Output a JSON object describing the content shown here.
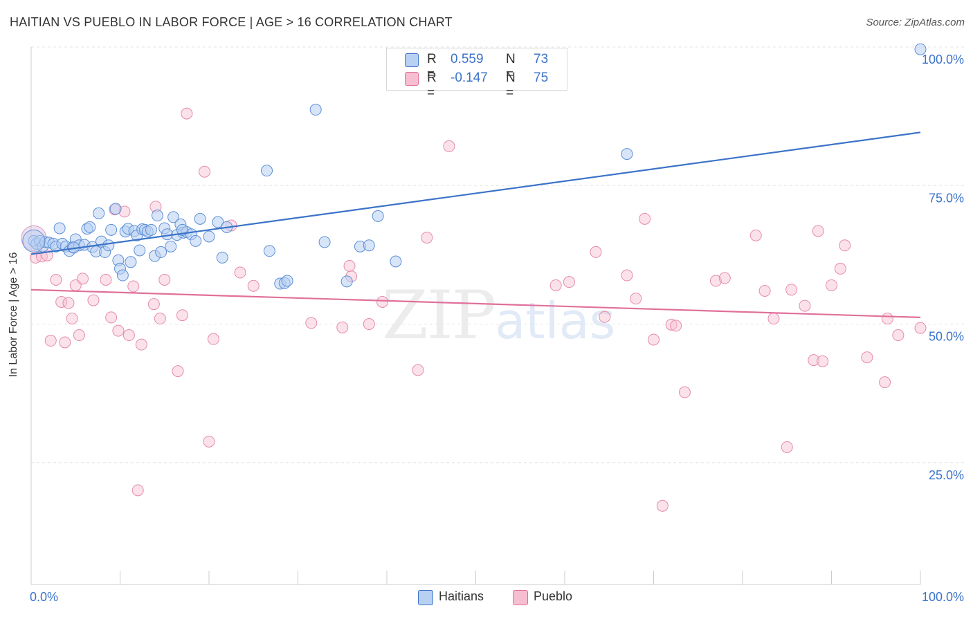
{
  "title": "HAITIAN VS PUEBLO IN LABOR FORCE | AGE > 16 CORRELATION CHART",
  "source": "Source: ZipAtlas.com",
  "watermark": {
    "zip": "ZIP",
    "atlas": "atlas"
  },
  "legend": {
    "rows": [
      {
        "r_label": "R =",
        "r_value": "0.559",
        "n_label": "N =",
        "n_value": "73"
      },
      {
        "r_label": "R =",
        "r_value": "-0.147",
        "n_label": "N =",
        "n_value": "75"
      }
    ]
  },
  "bottom_legend": {
    "haitians": "Haitians",
    "pueblo": "Pueblo"
  },
  "colors": {
    "blue": "#3b73c8",
    "blue_fill": "#b8d0f2",
    "pink": "#e0709a",
    "pink_fill": "#f7bed1",
    "grid": "#e3e3e3"
  },
  "chart_data": {
    "type": "scatter",
    "title": "HAITIAN VS PUEBLO IN LABOR FORCE | AGE > 16 CORRELATION CHART",
    "xlabel": "",
    "ylabel": "In Labor Force | Age > 16",
    "xlim": [
      0,
      100
    ],
    "ylim": [
      3,
      101
    ],
    "x_tick_labels": [
      "0.0%",
      "100.0%"
    ],
    "y_ticks": [
      25,
      50,
      75,
      100
    ],
    "y_tick_labels": [
      "25.0%",
      "50.0%",
      "75.0%",
      "100.0%"
    ],
    "series": [
      {
        "name": "Haitians",
        "color": "#3b73c8",
        "trend": {
          "x": [
            0,
            100
          ],
          "y": [
            62.6,
            84.6
          ]
        },
        "points": [
          [
            0.3,
            65
          ],
          [
            0.6,
            64.5
          ],
          [
            1.0,
            65
          ],
          [
            1.3,
            64
          ],
          [
            1.6,
            64.8
          ],
          [
            2.0,
            64.7
          ],
          [
            2.5,
            64.5
          ],
          [
            2.8,
            64
          ],
          [
            3.2,
            67.3
          ],
          [
            3.5,
            64.5
          ],
          [
            3.9,
            64
          ],
          [
            4.3,
            63.2
          ],
          [
            4.7,
            63.9
          ],
          [
            5.0,
            65.3
          ],
          [
            5.4,
            64.2
          ],
          [
            6.0,
            64.3
          ],
          [
            6.3,
            67.2
          ],
          [
            6.6,
            67.5
          ],
          [
            6.9,
            63.9
          ],
          [
            7.3,
            63.1
          ],
          [
            7.6,
            70
          ],
          [
            7.9,
            64.9
          ],
          [
            8.3,
            63
          ],
          [
            8.7,
            64.2
          ],
          [
            9.0,
            67
          ],
          [
            9.5,
            70.8
          ],
          [
            9.8,
            61.5
          ],
          [
            10.0,
            60
          ],
          [
            10.3,
            58.8
          ],
          [
            10.6,
            66.7
          ],
          [
            10.9,
            67.2
          ],
          [
            11.2,
            61.2
          ],
          [
            11.6,
            66.8
          ],
          [
            11.9,
            66
          ],
          [
            12.2,
            63.3
          ],
          [
            12.5,
            67.1
          ],
          [
            12.8,
            67
          ],
          [
            13.1,
            66.7
          ],
          [
            13.5,
            67
          ],
          [
            13.9,
            62.3
          ],
          [
            14.2,
            69.6
          ],
          [
            14.6,
            63
          ],
          [
            15.0,
            67.3
          ],
          [
            15.3,
            66.2
          ],
          [
            15.7,
            64
          ],
          [
            16.0,
            69.3
          ],
          [
            16.4,
            66.1
          ],
          [
            16.8,
            68
          ],
          [
            17.1,
            66.5
          ],
          [
            17.5,
            66.6
          ],
          [
            18.0,
            66.2
          ],
          [
            18.5,
            65
          ],
          [
            19.0,
            69
          ],
          [
            20.0,
            65.8
          ],
          [
            21.0,
            68.4
          ],
          [
            22.0,
            67.5
          ],
          [
            21.5,
            62
          ],
          [
            26.5,
            77.7
          ],
          [
            26.8,
            63.2
          ],
          [
            28.0,
            57.3
          ],
          [
            28.5,
            57.4
          ],
          [
            28.8,
            57.8
          ],
          [
            32.0,
            88.7
          ],
          [
            33.0,
            64.8
          ],
          [
            35.5,
            57.7
          ],
          [
            37.0,
            64
          ],
          [
            38.0,
            64.2
          ],
          [
            39.0,
            69.5
          ],
          [
            41.0,
            61.3
          ],
          [
            67.0,
            80.7
          ],
          [
            100.0,
            99.6
          ],
          [
            17.0,
            67
          ],
          [
            4.8,
            63.8
          ]
        ]
      },
      {
        "name": "Pueblo",
        "color": "#e0709a",
        "trend": {
          "x": [
            0,
            100
          ],
          "y": [
            56.2,
            51.2
          ]
        },
        "points": [
          [
            0.5,
            62
          ],
          [
            1.2,
            62.2
          ],
          [
            1.8,
            62.4
          ],
          [
            2.2,
            47
          ],
          [
            2.8,
            58
          ],
          [
            3.4,
            54
          ],
          [
            3.8,
            46.7
          ],
          [
            4.2,
            53.8
          ],
          [
            4.6,
            51
          ],
          [
            5.0,
            57
          ],
          [
            5.4,
            48
          ],
          [
            5.8,
            58.2
          ],
          [
            7.0,
            54.3
          ],
          [
            8.4,
            58
          ],
          [
            9.0,
            51.2
          ],
          [
            9.4,
            70.7
          ],
          [
            9.8,
            48.8
          ],
          [
            10.5,
            70.3
          ],
          [
            11.0,
            48
          ],
          [
            11.5,
            56.8
          ],
          [
            12.0,
            20
          ],
          [
            12.4,
            46.3
          ],
          [
            13.8,
            53.6
          ],
          [
            14.5,
            51
          ],
          [
            15.0,
            58
          ],
          [
            14.0,
            71.2
          ],
          [
            16.5,
            41.5
          ],
          [
            17.0,
            51.6
          ],
          [
            17.5,
            88
          ],
          [
            19.5,
            77.5
          ],
          [
            20.0,
            28.8
          ],
          [
            20.5,
            47.3
          ],
          [
            22.5,
            67.8
          ],
          [
            23.5,
            59.3
          ],
          [
            25.0,
            56.9
          ],
          [
            31.5,
            50.2
          ],
          [
            35.0,
            49.4
          ],
          [
            36.0,
            58.6
          ],
          [
            38.0,
            50
          ],
          [
            39.5,
            54
          ],
          [
            43.5,
            41.7
          ],
          [
            44.5,
            65.6
          ],
          [
            47.0,
            82.1
          ],
          [
            59.0,
            57
          ],
          [
            60.5,
            57.6
          ],
          [
            63.5,
            63
          ],
          [
            64.5,
            51.3
          ],
          [
            67.0,
            58.8
          ],
          [
            68.0,
            54.6
          ],
          [
            69.0,
            69
          ],
          [
            70.0,
            47.2
          ],
          [
            71.0,
            17.2
          ],
          [
            72.0,
            49.9
          ],
          [
            72.5,
            49.7
          ],
          [
            73.5,
            37.7
          ],
          [
            77.0,
            57.8
          ],
          [
            78.0,
            58.3
          ],
          [
            81.5,
            66
          ],
          [
            82.5,
            56
          ],
          [
            83.5,
            51
          ],
          [
            85.0,
            27.8
          ],
          [
            85.5,
            56.2
          ],
          [
            87.0,
            53.3
          ],
          [
            88.0,
            43.5
          ],
          [
            89.0,
            43.3
          ],
          [
            90.0,
            57
          ],
          [
            91.0,
            60
          ],
          [
            91.5,
            64.2
          ],
          [
            96.0,
            39.5
          ],
          [
            96.3,
            51
          ],
          [
            97.5,
            48
          ],
          [
            94.0,
            44
          ],
          [
            100.0,
            49.3
          ],
          [
            88.5,
            66.8
          ],
          [
            35.8,
            60.5
          ]
        ]
      }
    ]
  }
}
